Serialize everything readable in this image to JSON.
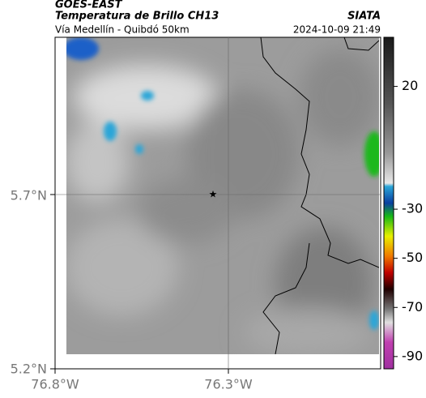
{
  "header": {
    "source": "GOES-EAST",
    "title": "Temperatura de Brillo CH13",
    "organization": "SIATA",
    "subtitle": "Vía Medellín - Quibdó 50km",
    "timestamp": "2024-10-09 21:49"
  },
  "map": {
    "lat_ticks": [
      "5.7°N",
      "5.2°N"
    ],
    "lon_ticks": [
      "76.8°W",
      "76.3°W"
    ]
  },
  "colorbar": {
    "lim": [
      40,
      -95
    ],
    "ticks": [
      20,
      -30,
      -50,
      -70,
      -90
    ]
  }
}
